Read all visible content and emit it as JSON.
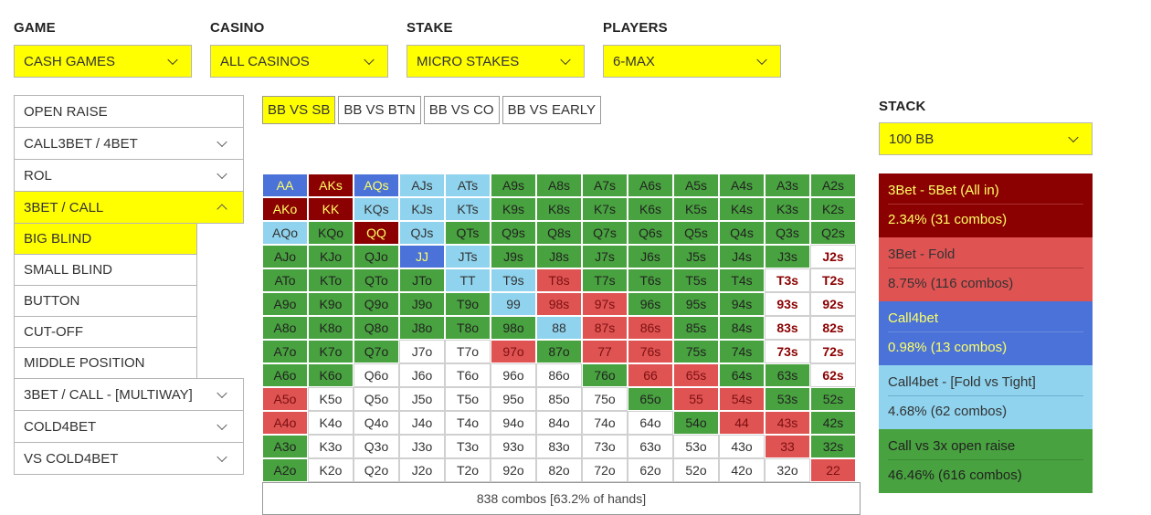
{
  "filters": [
    {
      "label": "GAME",
      "value": "CASH GAMES"
    },
    {
      "label": "CASINO",
      "value": "ALL CASINOS"
    },
    {
      "label": "STAKE",
      "value": "MICRO STAKES"
    },
    {
      "label": "PLAYERS",
      "value": "6-MAX"
    }
  ],
  "stack": {
    "label": "STACK",
    "value": "100 BB"
  },
  "nav": {
    "items": [
      {
        "label": "OPEN RAISE",
        "state": "none"
      },
      {
        "label": "CALL3BET / 4BET",
        "state": "collapsed"
      },
      {
        "label": "ROL",
        "state": "collapsed"
      },
      {
        "label": "3BET / CALL",
        "state": "expanded",
        "active": true,
        "subitems": [
          "BIG BLIND",
          "SMALL BLIND",
          "BUTTON",
          "CUT-OFF",
          "MIDDLE POSITION"
        ],
        "active_sub": 0
      },
      {
        "label": "3BET / CALL - [MULTIWAY]",
        "state": "collapsed"
      },
      {
        "label": "COLD4BET",
        "state": "collapsed"
      },
      {
        "label": "VS COLD4BET",
        "state": "collapsed"
      }
    ]
  },
  "tabs": [
    "BB VS SB",
    "BB VS BTN",
    "BB VS CO",
    "BB VS EARLY"
  ],
  "active_tab": 0,
  "colors": {
    "3bet_allin": "#8b0000",
    "3bet_fold": "#e05353",
    "call4bet": "#4a72d8",
    "call4bet_fold_tight": "#8fd3ee",
    "call": "#48a23f",
    "fold": "#ffffff",
    "accent": "#ffff00"
  },
  "matrix": {
    "rows": [
      [
        "AA",
        "AKs",
        "AQs",
        "AJs",
        "ATs",
        "A9s",
        "A8s",
        "A7s",
        "A6s",
        "A5s",
        "A4s",
        "A3s",
        "A2s"
      ],
      [
        "AKo",
        "KK",
        "KQs",
        "KJs",
        "KTs",
        "K9s",
        "K8s",
        "K7s",
        "K6s",
        "K5s",
        "K4s",
        "K3s",
        "K2s"
      ],
      [
        "AQo",
        "KQo",
        "QQ",
        "QJs",
        "QTs",
        "Q9s",
        "Q8s",
        "Q7s",
        "Q6s",
        "Q5s",
        "Q4s",
        "Q3s",
        "Q2s"
      ],
      [
        "AJo",
        "KJo",
        "QJo",
        "JJ",
        "JTs",
        "J9s",
        "J8s",
        "J7s",
        "J6s",
        "J5s",
        "J4s",
        "J3s",
        "J2s"
      ],
      [
        "ATo",
        "KTo",
        "QTo",
        "JTo",
        "TT",
        "T9s",
        "T8s",
        "T7s",
        "T6s",
        "T5s",
        "T4s",
        "T3s",
        "T2s"
      ],
      [
        "A9o",
        "K9o",
        "Q9o",
        "J9o",
        "T9o",
        "99",
        "98s",
        "97s",
        "96s",
        "95s",
        "94s",
        "93s",
        "92s"
      ],
      [
        "A8o",
        "K8o",
        "Q8o",
        "J8o",
        "T8o",
        "98o",
        "88",
        "87s",
        "86s",
        "85s",
        "84s",
        "83s",
        "82s"
      ],
      [
        "A7o",
        "K7o",
        "Q7o",
        "J7o",
        "T7o",
        "97o",
        "87o",
        "77",
        "76s",
        "75s",
        "74s",
        "73s",
        "72s"
      ],
      [
        "A6o",
        "K6o",
        "Q6o",
        "J6o",
        "T6o",
        "96o",
        "86o",
        "76o",
        "66",
        "65s",
        "64s",
        "63s",
        "62s"
      ],
      [
        "A5o",
        "K5o",
        "Q5o",
        "J5o",
        "T5o",
        "95o",
        "85o",
        "75o",
        "65o",
        "55",
        "54s",
        "53s",
        "52s"
      ],
      [
        "A4o",
        "K4o",
        "Q4o",
        "J4o",
        "T4o",
        "94o",
        "84o",
        "74o",
        "64o",
        "54o",
        "44",
        "43s",
        "42s"
      ],
      [
        "A3o",
        "K3o",
        "Q3o",
        "J3o",
        "T3o",
        "93o",
        "83o",
        "73o",
        "63o",
        "53o",
        "43o",
        "33",
        "32s"
      ],
      [
        "A2o",
        "K2o",
        "Q2o",
        "J2o",
        "T2o",
        "92o",
        "82o",
        "72o",
        "62o",
        "52o",
        "42o",
        "32o",
        "22"
      ]
    ],
    "actions": [
      [
        "C",
        "A",
        "C",
        "L",
        "L",
        "G",
        "G",
        "G",
        "G",
        "G",
        "G",
        "G",
        "G"
      ],
      [
        "A",
        "A",
        "L",
        "L",
        "L",
        "G",
        "G",
        "G",
        "G",
        "G",
        "G",
        "G",
        "G"
      ],
      [
        "L",
        "G",
        "A",
        "L",
        "G",
        "G",
        "G",
        "G",
        "G",
        "G",
        "G",
        "G",
        "G"
      ],
      [
        "G",
        "G",
        "G",
        "C",
        "L",
        "G",
        "G",
        "G",
        "G",
        "G",
        "G",
        "G",
        "W"
      ],
      [
        "G",
        "G",
        "G",
        "G",
        "L",
        "L",
        "R",
        "G",
        "G",
        "G",
        "G",
        "W",
        "W"
      ],
      [
        "G",
        "G",
        "G",
        "G",
        "G",
        "L",
        "R",
        "R",
        "G",
        "G",
        "G",
        "W",
        "W"
      ],
      [
        "G",
        "G",
        "G",
        "G",
        "G",
        "G",
        "L",
        "R",
        "R",
        "G",
        "G",
        "W",
        "W"
      ],
      [
        "G",
        "G",
        "G",
        "W",
        "W",
        "R",
        "G",
        "R",
        "R",
        "G",
        "G",
        "W",
        "W"
      ],
      [
        "G",
        "G",
        "W",
        "W",
        "W",
        "W",
        "W",
        "G",
        "R",
        "R",
        "G",
        "G",
        "W"
      ],
      [
        "R",
        "W",
        "W",
        "W",
        "W",
        "W",
        "W",
        "W",
        "G",
        "R",
        "R",
        "G",
        "G"
      ],
      [
        "R",
        "W",
        "W",
        "W",
        "W",
        "W",
        "W",
        "W",
        "W",
        "G",
        "R",
        "R",
        "G"
      ],
      [
        "G",
        "W",
        "W",
        "W",
        "W",
        "W",
        "W",
        "W",
        "W",
        "W",
        "W",
        "R",
        "G"
      ],
      [
        "G",
        "W",
        "W",
        "W",
        "W",
        "W",
        "W",
        "W",
        "W",
        "W",
        "W",
        "W",
        "R"
      ]
    ],
    "footer": "838 combos [63.2% of hands]"
  },
  "legend": [
    {
      "name": "3Bet - 5Bet (All in)",
      "pct": "2.34% (31 combos)",
      "color": "#8b0000",
      "text": "#ffff66",
      "line": "#a83030"
    },
    {
      "name": "3Bet - Fold",
      "pct": "8.75%  (116 combos)",
      "color": "#e05353",
      "text": "#333333",
      "line": "#b03a3a"
    },
    {
      "name": "Call4bet",
      "pct": "0.98%  (13 combos)",
      "color": "#4a72d8",
      "text": "#ffff66",
      "line": "#6a8ee0"
    },
    {
      "name": "Call4bet - [Fold vs Tight]",
      "pct": "4.68%  (62 combos)",
      "color": "#8fd3ee",
      "text": "#333333",
      "line": "#6aaed0"
    },
    {
      "name": "Call vs 3x open raise",
      "pct": "46.46%  (616 combos)",
      "color": "#48a23f",
      "text": "#222222",
      "line": "#3a8a33"
    }
  ]
}
